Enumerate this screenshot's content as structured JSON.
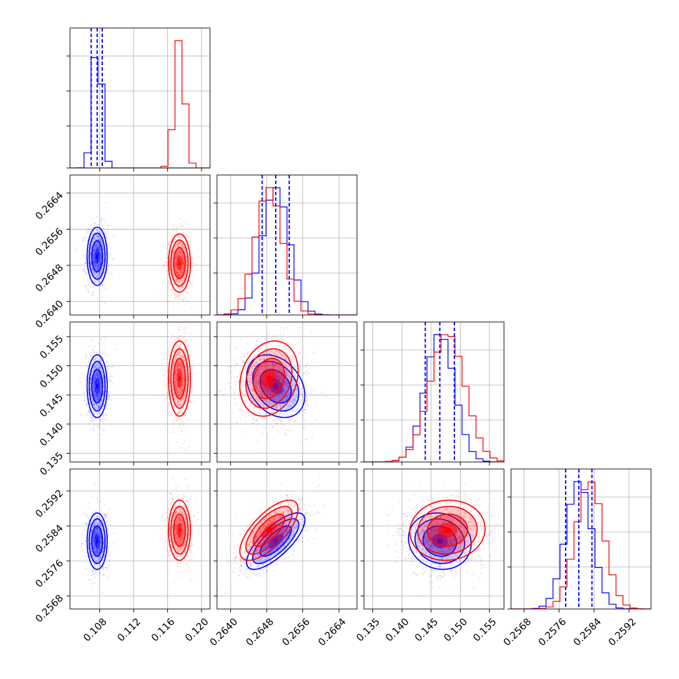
{
  "chart_data": {
    "type": "corner",
    "title": "",
    "colors": {
      "blue": "#0000ff",
      "red": "#ff0000"
    },
    "grid": true,
    "parameters": [
      {
        "ticks": [
          0.108,
          0.112,
          0.116,
          0.12
        ],
        "tick_labels": [
          "0.108",
          "0.112",
          "0.116",
          "0.120"
        ],
        "range": [
          0.1045,
          0.121
        ]
      },
      {
        "ticks": [
          0.264,
          0.2648,
          0.2656,
          0.2664
        ],
        "tick_labels": [
          "0.2640",
          "0.2648",
          "0.2656",
          "0.2664"
        ],
        "range": [
          0.2637,
          0.2668
        ]
      },
      {
        "ticks": [
          0.135,
          0.14,
          0.145,
          0.15,
          0.155
        ],
        "tick_labels": [
          "0.135",
          "0.140",
          "0.145",
          "0.150",
          "0.155"
        ],
        "range": [
          0.1335,
          0.1575
        ]
      },
      {
        "ticks": [
          0.2568,
          0.2576,
          0.2584,
          0.2592
        ],
        "tick_labels": [
          "0.2568",
          "0.2576",
          "0.2584",
          "0.2592"
        ],
        "range": [
          0.2565,
          0.2597
        ]
      }
    ],
    "series": [
      {
        "color": "#0000ff",
        "mean": [
          0.1077,
          0.265,
          0.1465,
          0.25805
        ],
        "sigma": [
          0.00055,
          0.0003,
          0.0025,
          0.0003
        ],
        "correlations": {
          "0-1": 0.0,
          "0-2": 0.0,
          "0-3": 0.0,
          "1-2": -0.3,
          "1-3": 0.75,
          "2-3": -0.1
        },
        "quantiles": [
          [
            0.107,
            0.1077,
            0.1083
          ],
          [
            0.2647,
            0.265,
            0.2653
          ],
          [
            0.144,
            0.1465,
            0.149
          ],
          [
            0.25775,
            0.25805,
            0.25835
          ]
        ]
      },
      {
        "color": "#ff0000",
        "mean": [
          0.1174,
          0.26485,
          0.1478,
          0.2583
        ],
        "sigma": [
          0.0006,
          0.0003,
          0.003,
          0.00032
        ],
        "correlations": {
          "0-1": 0.0,
          "0-2": 0.0,
          "0-3": 0.0,
          "1-2": 0.2,
          "1-3": 0.7,
          "2-3": 0.05
        },
        "quantiles": []
      }
    ]
  }
}
